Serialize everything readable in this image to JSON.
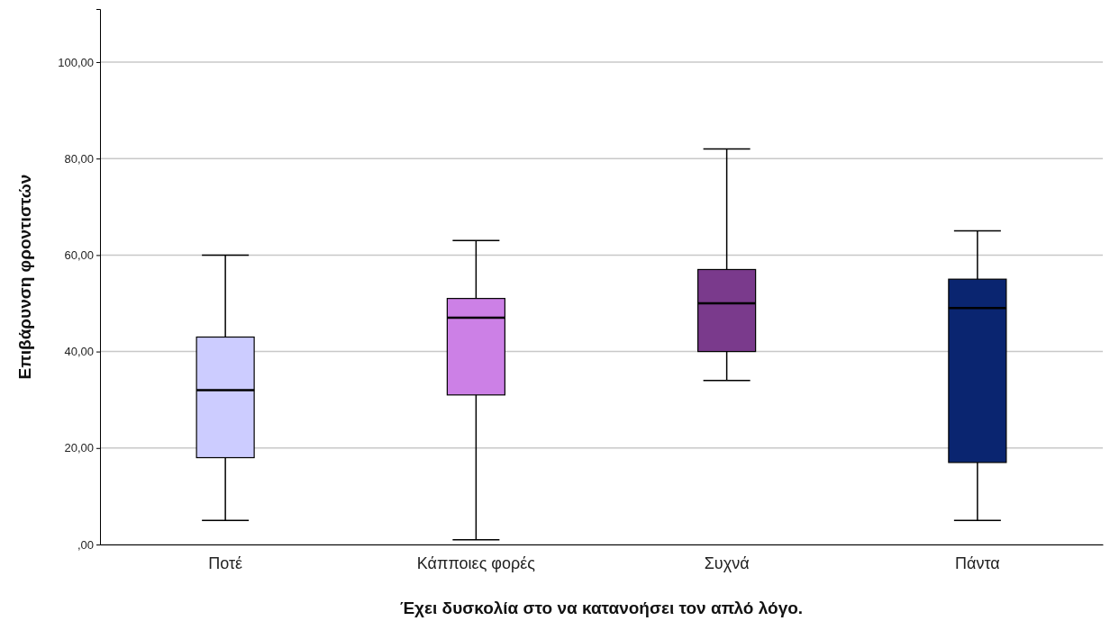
{
  "chart_data": {
    "type": "box",
    "xlabel": "Έχει δυσκολία στο να κατανοήσει τον απλό λόγο.",
    "ylabel": "Επιβάρυνση φροντιστών",
    "categories": [
      "Ποτέ",
      "Κάπποιες φορές",
      "Συχνά",
      "Πάντα"
    ],
    "colors": [
      "#ccccff",
      "#cc80e6",
      "#7a3a8c",
      "#0a2570"
    ],
    "boxes": [
      {
        "low": 5,
        "q1": 18,
        "median": 32,
        "q3": 43,
        "high": 60
      },
      {
        "low": 1,
        "q1": 31,
        "median": 47,
        "q3": 51,
        "high": 63
      },
      {
        "low": 34,
        "q1": 40,
        "median": 50,
        "q3": 57,
        "high": 82
      },
      {
        "low": 5,
        "q1": 17,
        "median": 49,
        "q3": 55,
        "high": 65
      }
    ],
    "ylim": [
      0,
      111
    ],
    "yticks": [
      {
        "value": 0,
        "label": ",00"
      },
      {
        "value": 20,
        "label": "20,00"
      },
      {
        "value": 40,
        "label": "40,00"
      },
      {
        "value": 60,
        "label": "60,00"
      },
      {
        "value": 80,
        "label": "80,00"
      },
      {
        "value": 100,
        "label": "100,00"
      }
    ],
    "grid": "y"
  }
}
